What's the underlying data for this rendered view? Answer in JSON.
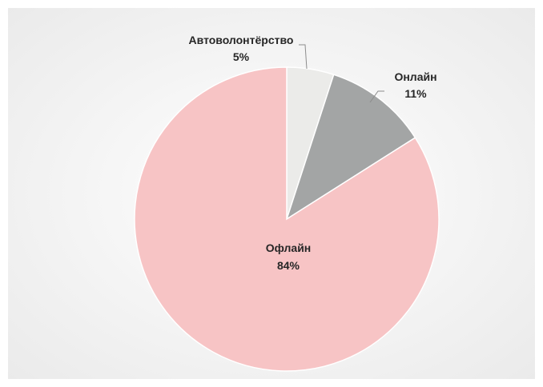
{
  "chart_data": {
    "type": "pie",
    "title": "",
    "start_angle_deg": 0,
    "direction": "clockwise",
    "slices": [
      {
        "label": "Автоволонтёрство",
        "value": 5,
        "value_label": "5%",
        "color": "#ebebe9",
        "label_position": "outside-top-left"
      },
      {
        "label": "Онлайн",
        "value": 11,
        "value_label": "11%",
        "color": "#a3a5a5",
        "label_position": "outside-top-right"
      },
      {
        "label": "Офлайн",
        "value": 84,
        "value_label": "84%",
        "color": "#f7c4c5",
        "label_position": "inside"
      }
    ]
  },
  "colors": {
    "slice_border": "#ffffff",
    "leader_line": "#8c8c8c",
    "background_outer": "#efefef",
    "background_center": "#ffffff"
  }
}
